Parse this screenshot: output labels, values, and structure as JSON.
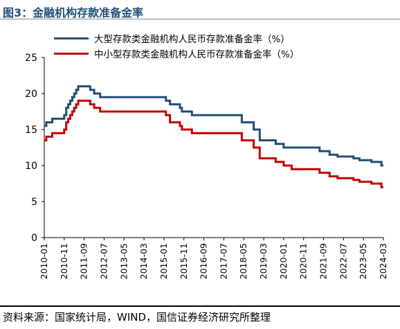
{
  "figure": {
    "title": "图3：金融机构存款准备金率",
    "source": "资料来源：国家统计局，WIND，国信证券经济研究所整理"
  },
  "colors": {
    "large": "#1f4e79",
    "small": "#c00000"
  },
  "chart_data": {
    "type": "line",
    "title": "",
    "xlabel": "",
    "ylabel": "",
    "ylim": [
      0,
      25
    ],
    "yticks": [
      0,
      5,
      10,
      15,
      20,
      25
    ],
    "x_ticks": [
      "2010-01",
      "2010-11",
      "2011-09",
      "2012-07",
      "2013-05",
      "2014-03",
      "2015-01",
      "2015-11",
      "2016-09",
      "2017-07",
      "2018-05",
      "2019-03",
      "2020-01",
      "2020-11",
      "2021-09",
      "2022-07",
      "2023-05",
      "2024-03"
    ],
    "legend_position": "top-left",
    "grid": false,
    "series": [
      {
        "name": "大型存款类金融机构人民币存款准备金率（%）",
        "points": [
          [
            "2010-01",
            15.5
          ],
          [
            "2010-02",
            16.0
          ],
          [
            "2010-05",
            16.5
          ],
          [
            "2010-11",
            17.0
          ],
          [
            "2010-12",
            18.0
          ],
          [
            "2011-01",
            18.5
          ],
          [
            "2011-02",
            19.0
          ],
          [
            "2011-03",
            19.5
          ],
          [
            "2011-04",
            20.0
          ],
          [
            "2011-05",
            20.5
          ],
          [
            "2011-06",
            21.0
          ],
          [
            "2011-12",
            20.5
          ],
          [
            "2012-02",
            20.0
          ],
          [
            "2012-05",
            19.5
          ],
          [
            "2015-02",
            19.0
          ],
          [
            "2015-04",
            18.5
          ],
          [
            "2015-09",
            18.0
          ],
          [
            "2015-10",
            17.5
          ],
          [
            "2016-03",
            17.0
          ],
          [
            "2018-04",
            16.0
          ],
          [
            "2018-10",
            15.0
          ],
          [
            "2019-01",
            14.0
          ],
          [
            "2019-01",
            13.5
          ],
          [
            "2019-09",
            13.0
          ],
          [
            "2020-01",
            12.5
          ],
          [
            "2021-07",
            12.0
          ],
          [
            "2021-12",
            11.5
          ],
          [
            "2022-04",
            11.25
          ],
          [
            "2022-12",
            11.0
          ],
          [
            "2023-03",
            10.75
          ],
          [
            "2023-09",
            10.5
          ],
          [
            "2024-02",
            10.0
          ],
          [
            "2024-03",
            10.0
          ]
        ]
      },
      {
        "name": "中小型存款类金融机构人民币存款准备金率（%）",
        "points": [
          [
            "2010-01",
            13.5
          ],
          [
            "2010-02",
            14.0
          ],
          [
            "2010-05",
            14.5
          ],
          [
            "2010-11",
            15.0
          ],
          [
            "2010-12",
            16.0
          ],
          [
            "2011-01",
            16.5
          ],
          [
            "2011-02",
            17.0
          ],
          [
            "2011-03",
            17.5
          ],
          [
            "2011-04",
            18.0
          ],
          [
            "2011-05",
            18.5
          ],
          [
            "2011-06",
            19.0
          ],
          [
            "2011-12",
            18.5
          ],
          [
            "2012-02",
            18.0
          ],
          [
            "2012-05",
            17.5
          ],
          [
            "2015-02",
            17.0
          ],
          [
            "2015-04",
            16.0
          ],
          [
            "2015-09",
            15.5
          ],
          [
            "2015-10",
            15.0
          ],
          [
            "2016-03",
            14.5
          ],
          [
            "2018-04",
            13.5
          ],
          [
            "2018-10",
            12.5
          ],
          [
            "2019-01",
            11.5
          ],
          [
            "2019-01",
            11.0
          ],
          [
            "2019-09",
            10.5
          ],
          [
            "2020-01",
            10.0
          ],
          [
            "2020-05",
            9.5
          ],
          [
            "2021-07",
            9.0
          ],
          [
            "2021-12",
            8.5
          ],
          [
            "2022-04",
            8.25
          ],
          [
            "2022-12",
            8.0
          ],
          [
            "2023-03",
            7.75
          ],
          [
            "2023-09",
            7.5
          ],
          [
            "2024-02",
            7.0
          ],
          [
            "2024-03",
            7.0
          ]
        ]
      }
    ]
  }
}
